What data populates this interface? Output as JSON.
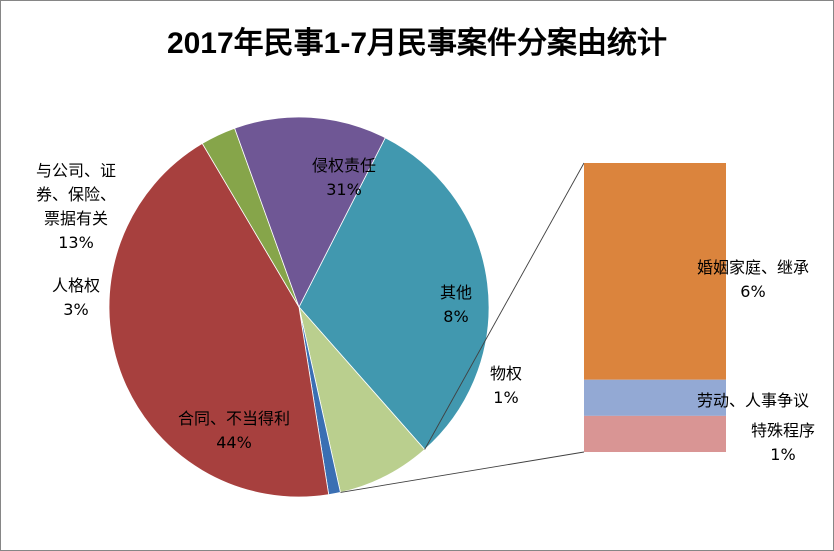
{
  "chart_data": {
    "type": "pie",
    "title": "2017年民事1-7月民事案件分案由统计",
    "slices": [
      {
        "name": "侵权责任",
        "label_lines": [
          "侵权责任"
        ],
        "value": 31,
        "value_label": "31%",
        "color": "#4198AF"
      },
      {
        "name": "其他",
        "label_lines": [
          "其他"
        ],
        "value": 8,
        "value_label": "8%",
        "color": "#BACF8E"
      },
      {
        "name": "物权",
        "label_lines": [
          "物权"
        ],
        "value": 1,
        "value_label": "1%",
        "color": "#3A6FB3"
      },
      {
        "name": "合同、不当得利",
        "label_lines": [
          "合同、不当得利"
        ],
        "value": 44,
        "value_label": "44%",
        "color": "#A7403E"
      },
      {
        "name": "人格权",
        "label_lines": [
          "人格权"
        ],
        "value": 3,
        "value_label": "3%",
        "color": "#86A54A"
      },
      {
        "name": "与公司、证券、保险、票据有关",
        "label_lines": [
          "与公司、证",
          "券、保险、",
          "票据有关"
        ],
        "value": 13,
        "value_label": "13%",
        "color": "#6F5795"
      }
    ],
    "breakdown_of": "其他",
    "breakdown": [
      {
        "name": "婚姻家庭、继承",
        "value": 6,
        "value_label": "6%",
        "color": "#DB843D"
      },
      {
        "name": "劳动、人事争议",
        "value": 1,
        "value_label": "",
        "color": "#93A9D4"
      },
      {
        "name": "特殊程序",
        "value": 1,
        "value_label": "1%",
        "color": "#D99594"
      }
    ]
  }
}
